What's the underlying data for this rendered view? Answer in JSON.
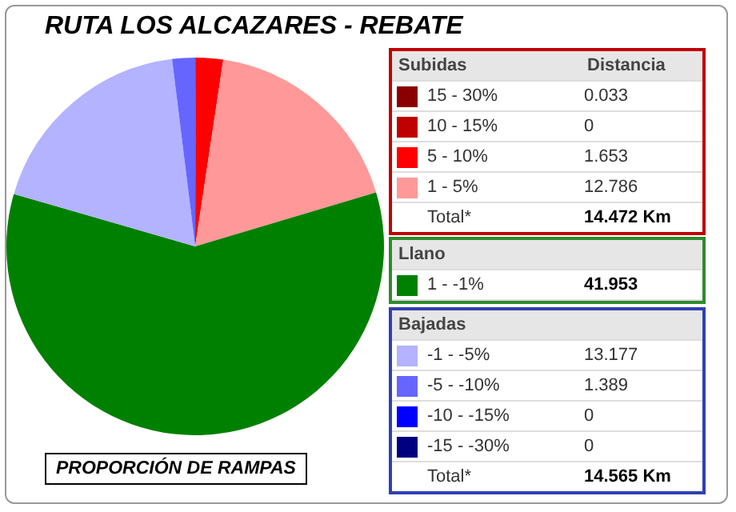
{
  "chart_data": {
    "type": "pie",
    "title": "RUTA LOS ALCAZARES - REBATE",
    "categories": [
      "15 - 30%",
      "10 - 15%",
      "5 - 10%",
      "1 - 5%",
      "1 - -1%",
      "-1 - -5%",
      "-5 - -10%",
      "-10 - -15%",
      "-15 - -30%"
    ],
    "values": [
      0.033,
      0,
      1.653,
      12.786,
      41.953,
      13.177,
      1.389,
      0,
      0
    ],
    "colors": [
      "#8b0000",
      "#c00000",
      "#ff0000",
      "#ff9999",
      "#008000",
      "#b3b3ff",
      "#6666ff",
      "#0000ff",
      "#000080"
    ],
    "value_labels": [
      "0.033",
      "0",
      "1.653",
      "12.786",
      "41.953",
      "13.177",
      "1.389",
      "0",
      "0"
    ],
    "legend": "right",
    "annotations": [
      "Subidas",
      "Distancia",
      "Total*",
      "14.472 Km",
      "Llano",
      "Bajadas",
      "Total*",
      "14.565 Km",
      "PROPORCIÓN DE RAMPAS"
    ]
  }
}
